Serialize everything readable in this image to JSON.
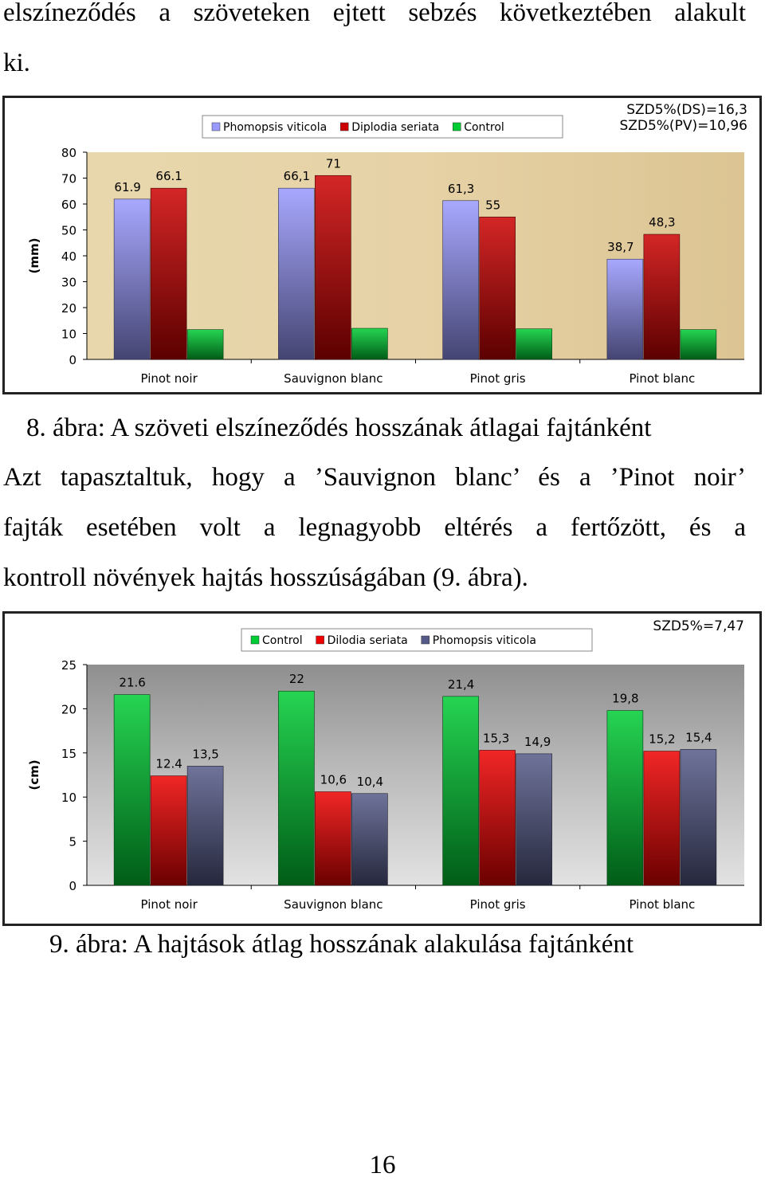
{
  "text": {
    "top_line1": "elszíneződés a szöveteken ejtett sebzés következtében alakult",
    "top_line2": "ki.",
    "caption1": "8. ábra: A szöveti elszíneződés hosszának átlagai fajtánként",
    "para_line1": "Azt tapasztaltuk, hogy a ’Sauvignon blanc’ és a ’Pinot noir’",
    "para_line2": "fajták esetében volt a legnagyobb eltérés a fertőzött, és a",
    "para_line3": "kontroll növények hajtás hosszúságában (9. ábra).",
    "caption2": "9. ábra: A hajtások átlag hosszának alakulása fajtánként",
    "page_number": "16"
  },
  "chart_data": [
    {
      "type": "bar",
      "title": "",
      "xlabel": "",
      "ylabel": "(mm)",
      "ylim": [
        0,
        80
      ],
      "yticks": [
        0,
        10,
        20,
        30,
        40,
        50,
        60,
        70,
        80
      ],
      "categories": [
        "Pinot noir",
        "Sauvignon blanc",
        "Pinot gris",
        "Pinot blanc"
      ],
      "series": [
        {
          "name": "Phomopsis viticola",
          "values": [
            61.9,
            66.1,
            61.3,
            38.7
          ],
          "labels": [
            "61.9",
            "66,1",
            "61,3",
            "38,7"
          ],
          "color": "#9999ff"
        },
        {
          "name": "Diplodia seriata",
          "values": [
            66.1,
            71,
            55,
            48.3
          ],
          "labels": [
            "66.1",
            "71",
            "55",
            "48,3"
          ],
          "color": "#cc0000"
        },
        {
          "name": "Control",
          "values": [
            11.5,
            12,
            11.8,
            11.5
          ],
          "labels": [
            "",
            "",
            "",
            ""
          ],
          "color": "#00cc33"
        }
      ],
      "legend_position": "top-center",
      "annotations": [
        "SZD5%(DS)=16,3",
        "SZD5%(PV)=10,96"
      ],
      "grid": false
    },
    {
      "type": "bar",
      "title": "",
      "xlabel": "",
      "ylabel": "(cm)",
      "ylim": [
        0,
        25
      ],
      "yticks": [
        0,
        5,
        10,
        15,
        20,
        25
      ],
      "categories": [
        "Pinot noir",
        "Sauvignon blanc",
        "Pinot gris",
        "Pinot blanc"
      ],
      "series": [
        {
          "name": "Control",
          "values": [
            21.6,
            22,
            21.4,
            19.8
          ],
          "labels": [
            "21.6",
            "22",
            "21,4",
            "19,8"
          ],
          "color": "#00cc33"
        },
        {
          "name": "Dilodia seriata",
          "values": [
            12.4,
            10.6,
            15.3,
            15.2
          ],
          "labels": [
            "12.4",
            "10,6",
            "15,3",
            "15,2"
          ],
          "color": "#ee0000"
        },
        {
          "name": "Phomopsis viticola",
          "values": [
            13.5,
            10.4,
            14.9,
            15.4
          ],
          "labels": [
            "13,5",
            "10,4",
            "14,9",
            "15,4"
          ],
          "color": "#555a88"
        }
      ],
      "legend_position": "top-center",
      "annotations": [
        "SZD5%=7,47"
      ],
      "grid": false
    }
  ],
  "colors": {
    "plot_bg_chart1": "#e6d2a6",
    "plot_bg_chart2": "#b8b8b8",
    "legend_border": "#888888"
  }
}
